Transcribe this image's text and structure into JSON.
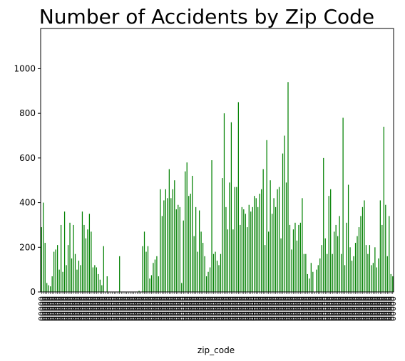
{
  "chart_data": {
    "type": "bar",
    "title": "Number of Accidents by Zip Code",
    "xlabel": "zip_code",
    "ylabel": "",
    "ylim": [
      0,
      1180
    ],
    "yticks": [
      0,
      200,
      400,
      600,
      800,
      1000
    ],
    "bar_color": "#008000",
    "grid": false,
    "x_tick_label_placeholder": "00000",
    "values": [
      290,
      400,
      220,
      40,
      30,
      25,
      70,
      180,
      190,
      210,
      100,
      300,
      90,
      360,
      120,
      210,
      310,
      150,
      300,
      170,
      100,
      140,
      120,
      360,
      300,
      240,
      280,
      350,
      270,
      110,
      120,
      110,
      80,
      55,
      30,
      205,
      0,
      70,
      0,
      0,
      0,
      0,
      0,
      0,
      160,
      0,
      0,
      0,
      0,
      0,
      0,
      0,
      0,
      0,
      0,
      5,
      0,
      205,
      270,
      180,
      205,
      60,
      75,
      130,
      145,
      160,
      70,
      460,
      340,
      410,
      460,
      420,
      550,
      420,
      460,
      500,
      370,
      390,
      380,
      40,
      320,
      540,
      580,
      430,
      440,
      520,
      250,
      380,
      180,
      365,
      270,
      220,
      160,
      70,
      90,
      110,
      590,
      170,
      180,
      140,
      120,
      170,
      510,
      800,
      380,
      280,
      490,
      760,
      280,
      470,
      470,
      850,
      300,
      380,
      370,
      350,
      290,
      390,
      360,
      380,
      430,
      420,
      380,
      440,
      460,
      550,
      210,
      680,
      270,
      500,
      350,
      420,
      380,
      460,
      470,
      240,
      620,
      700,
      490,
      940,
      300,
      190,
      280,
      310,
      230,
      300,
      310,
      420,
      170,
      170,
      80,
      60,
      130,
      90,
      0,
      100,
      120,
      150,
      210,
      600,
      240,
      170,
      430,
      460,
      170,
      270,
      300,
      250,
      340,
      170,
      780,
      120,
      310,
      480,
      200,
      140,
      160,
      220,
      250,
      290,
      340,
      380,
      410,
      210,
      170,
      210,
      120,
      130,
      200,
      110,
      150,
      410,
      300,
      740,
      390,
      160,
      340,
      80,
      70
    ]
  }
}
